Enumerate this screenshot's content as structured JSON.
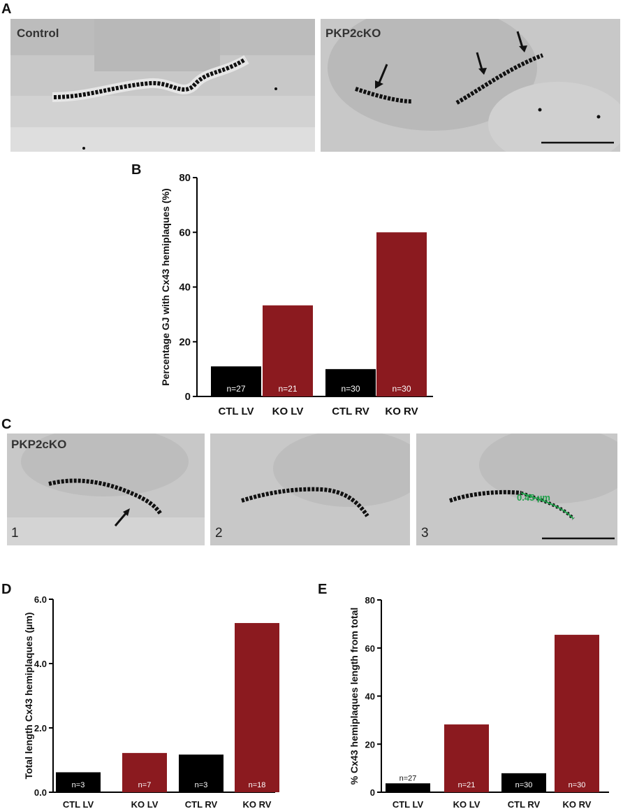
{
  "panels": {
    "A": {
      "letter": "A",
      "left_label": "Control",
      "right_label": "PKP2cKO"
    },
    "B": {
      "letter": "B"
    },
    "C": {
      "letter": "C",
      "label": "PKP2cKO",
      "numbers": [
        "1",
        "2",
        "3"
      ],
      "measure": "0.45 µm"
    },
    "D": {
      "letter": "D"
    },
    "E": {
      "letter": "E"
    }
  },
  "colors": {
    "control": "#000000",
    "ko": "#8b1a1f",
    "measure": "#1fa14a"
  },
  "chart_data": [
    {
      "id": "B",
      "type": "bar",
      "ylabel": "Percentage GJ with Cx43 hemiplaques (%)",
      "ylim": [
        0,
        80
      ],
      "yticks": [
        "0",
        "20",
        "40",
        "60",
        "80"
      ],
      "categories": [
        "CTL LV",
        "KO LV",
        "CTL RV",
        "KO RV"
      ],
      "values": [
        11,
        33.3,
        10,
        60
      ],
      "n_labels": [
        "n=27",
        "n=21",
        "n=30",
        "n=30"
      ],
      "groups": [
        "control",
        "ko",
        "control",
        "ko"
      ]
    },
    {
      "id": "D",
      "type": "bar",
      "ylabel": "Total length Cx43 hemiplaques (µm)",
      "ylim": [
        0,
        6
      ],
      "yticks": [
        "0.0",
        "2.0",
        "4.0",
        "6.0"
      ],
      "categories": [
        "CTL LV",
        "KO LV",
        "CTL RV",
        "KO RV"
      ],
      "values": [
        0.62,
        1.22,
        1.17,
        5.26
      ],
      "n_labels": [
        "n=3",
        "n=7",
        "n=3",
        "n=18"
      ],
      "groups": [
        "control",
        "ko",
        "control",
        "ko"
      ]
    },
    {
      "id": "E",
      "type": "bar",
      "ylabel": "% Cx43 hemiplaques length from total",
      "ylim": [
        0,
        80
      ],
      "yticks": [
        "0",
        "20",
        "40",
        "60",
        "80"
      ],
      "categories": [
        "CTL LV",
        "KO LV",
        "CTL RV",
        "KO RV"
      ],
      "values": [
        3.7,
        28.2,
        7.9,
        65.5
      ],
      "n_labels": [
        "n=27",
        "n=21",
        "n=30",
        "n=30"
      ],
      "groups": [
        "control",
        "ko",
        "control",
        "ko"
      ]
    }
  ]
}
